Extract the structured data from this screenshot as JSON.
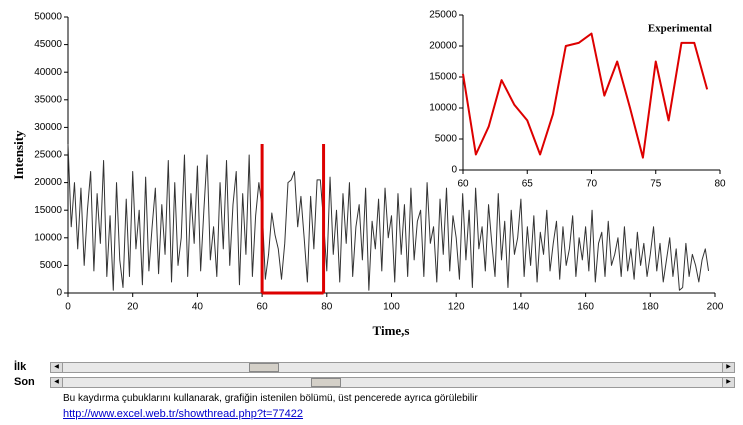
{
  "chart_data": [
    {
      "type": "line",
      "y_label": "Intensity",
      "x_label": "Time,s",
      "xlim": [
        0,
        200
      ],
      "xticks": [
        0,
        20,
        40,
        60,
        80,
        100,
        120,
        140,
        160,
        180,
        200
      ],
      "ylim": [
        0,
        50000
      ],
      "yticks": [
        0,
        5000,
        10000,
        15000,
        20000,
        25000,
        30000,
        35000,
        40000,
        45000,
        50000
      ],
      "x": [
        0,
        1,
        2,
        3,
        4,
        5,
        6,
        7,
        8,
        9,
        10,
        11,
        12,
        13,
        14,
        15,
        16,
        17,
        18,
        19,
        20,
        21,
        22,
        23,
        24,
        25,
        26,
        27,
        28,
        29,
        30,
        31,
        32,
        33,
        34,
        35,
        36,
        37,
        38,
        39,
        40,
        41,
        42,
        43,
        44,
        45,
        46,
        47,
        48,
        49,
        50,
        51,
        52,
        53,
        54,
        55,
        56,
        57,
        58,
        59,
        60,
        61,
        62,
        63,
        64,
        65,
        66,
        67,
        68,
        69,
        70,
        71,
        72,
        73,
        74,
        75,
        76,
        77,
        78,
        79,
        80,
        81,
        82,
        83,
        84,
        85,
        86,
        87,
        88,
        89,
        90,
        91,
        92,
        93,
        94,
        95,
        96,
        97,
        98,
        99,
        100,
        101,
        102,
        103,
        104,
        105,
        106,
        107,
        108,
        109,
        110,
        111,
        112,
        113,
        114,
        115,
        116,
        117,
        118,
        119,
        120,
        121,
        122,
        123,
        124,
        125,
        126,
        127,
        128,
        129,
        130,
        131,
        132,
        133,
        134,
        135,
        136,
        137,
        138,
        139,
        140,
        141,
        142,
        143,
        144,
        145,
        146,
        147,
        148,
        149,
        150,
        151,
        152,
        153,
        154,
        155,
        156,
        157,
        158,
        159,
        160,
        161,
        162,
        163,
        164,
        165,
        166,
        167,
        168,
        169,
        170,
        171,
        172,
        173,
        174,
        175,
        176,
        177,
        178,
        179,
        180,
        181,
        182,
        183,
        184,
        185,
        186,
        187,
        188,
        189,
        190,
        191,
        192,
        193,
        194,
        195,
        196,
        197,
        198
      ],
      "series": [
        {
          "color": "#333333",
          "values": [
            27000,
            12000,
            20000,
            8000,
            19000,
            5000,
            15000,
            22000,
            4000,
            18000,
            9000,
            24000,
            3000,
            14000,
            500,
            20000,
            6000,
            1000,
            17000,
            3000,
            22000,
            8000,
            15000,
            1500,
            21000,
            4000,
            12000,
            19000,
            3500,
            16000,
            7000,
            24000,
            2000,
            20000,
            5000,
            10000,
            25000,
            3000,
            18000,
            9000,
            23000,
            4000,
            15000,
            25000,
            6000,
            12000,
            3000,
            20000,
            8000,
            24000,
            5000,
            16000,
            22000,
            1500,
            18000,
            7000,
            25000,
            3000,
            14000,
            20000,
            15500,
            2500,
            7000,
            14500,
            10500,
            8000,
            2500,
            9000,
            20000,
            20500,
            22000,
            12000,
            17500,
            10000,
            2000,
            17500,
            8000,
            20500,
            20500,
            13000,
            4000,
            21000,
            7000,
            15000,
            2000,
            18000,
            9000,
            20000,
            3000,
            12000,
            16000,
            6000,
            19000,
            500,
            13000,
            8000,
            17000,
            4000,
            19000,
            10000,
            14000,
            2000,
            18000,
            7000,
            16000,
            3000,
            19000,
            6000,
            13000,
            15000,
            3000,
            20000,
            9000,
            12000,
            2000,
            17000,
            7000,
            19000,
            4000,
            14000,
            10000,
            2500,
            18000,
            6000,
            15000,
            1000,
            19000,
            8000,
            12000,
            4000,
            16000,
            9000,
            3000,
            18000,
            6000,
            13000,
            1000,
            15000,
            7000,
            10000,
            17000,
            3000,
            12000,
            5000,
            14000,
            2000,
            11000,
            7000,
            15000,
            4000,
            9000,
            13000,
            2500,
            12000,
            5000,
            8000,
            14000,
            3000,
            10000,
            6000,
            12000,
            4000,
            15000,
            2000,
            9000,
            11000,
            3000,
            13000,
            5000,
            7000,
            10000,
            3000,
            12000,
            4000,
            8000,
            2500,
            11000,
            5000,
            9000,
            3000,
            7000,
            12000,
            4000,
            9000,
            2000,
            6000,
            10000,
            3000,
            8000,
            500,
            1000,
            9000,
            3000,
            7000,
            5000,
            2000,
            6000,
            8000,
            4000
          ]
        }
      ]
    },
    {
      "type": "line",
      "xlim": [
        60,
        80
      ],
      "xticks": [
        60,
        65,
        70,
        75,
        80
      ],
      "ylim": [
        0,
        25000
      ],
      "yticks": [
        0,
        5000,
        10000,
        15000,
        20000,
        25000
      ],
      "x": [
        60,
        61,
        62,
        63,
        64,
        65,
        66,
        67,
        68,
        69,
        70,
        71,
        72,
        73,
        74,
        75,
        76,
        77,
        78,
        79
      ],
      "series": [
        {
          "name": "Experimental",
          "color": "#dd0000",
          "values": [
            15500,
            2500,
            7000,
            14500,
            10500,
            8000,
            2500,
            9000,
            20000,
            20500,
            22000,
            12000,
            17500,
            10000,
            2000,
            17500,
            8000,
            20500,
            20500,
            13000
          ]
        }
      ]
    }
  ],
  "controls": {
    "first_label": "İlk",
    "last_label": "Son"
  },
  "note": "Bu kaydırma çubuklarını kullanarak, grafiğin istenilen bölümü, üst pencerede ayrıca görülebilir",
  "link": "http://www.excel.web.tr/showthread.php?t=77422"
}
